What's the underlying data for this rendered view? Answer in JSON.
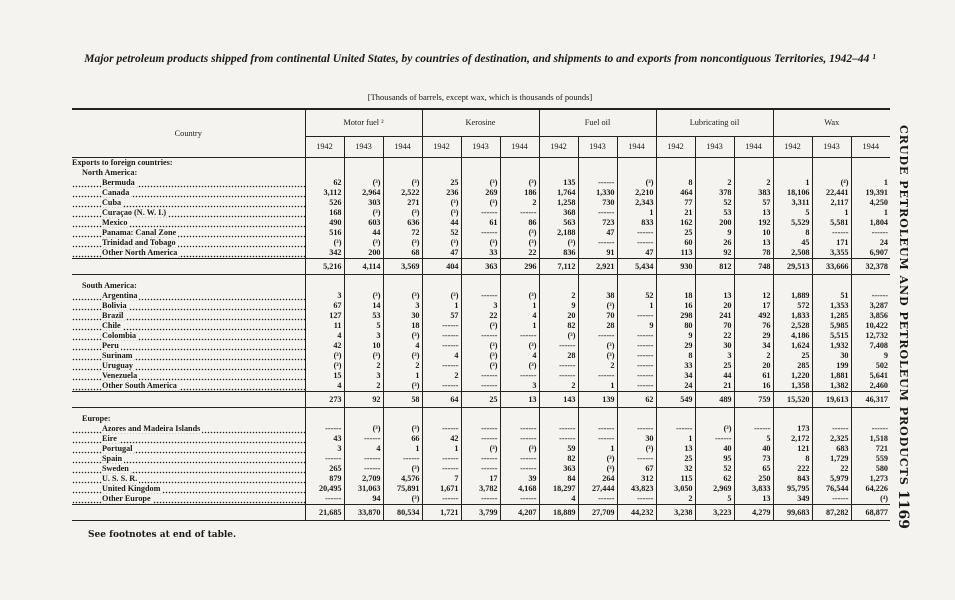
{
  "title": "Major petroleum products shipped from continental United States, by countries of destination, and shipments to and exports from noncontiguous Territories, 1942–44 ¹",
  "subtitle": "[Thousands of barrels, except wax, which is thousands of pounds]",
  "side_header": "CRUDE PETROLEUM AND PETROLEUM PRODUCTS",
  "page_number": "1169",
  "footnote_note": "See footnotes at end of table.",
  "columns": {
    "country": "Country",
    "groups": [
      "Motor fuel ²",
      "Kerosine",
      "Fuel oil",
      "Lubricating oil",
      "Wax"
    ],
    "years": [
      "1942",
      "1943",
      "1944"
    ]
  },
  "section_title": "Exports to foreign countries:",
  "regions": [
    {
      "name": "North America:",
      "rows": [
        {
          "label": "Bermuda",
          "values": [
            "62",
            "(³)",
            "(³)",
            "25",
            "(³)",
            "(³)",
            "135",
            "------",
            "(³)",
            "8",
            "2",
            "2",
            "1",
            "(⁴)",
            "1"
          ]
        },
        {
          "label": "Canada",
          "values": [
            "3,112",
            "2,964",
            "2,522",
            "236",
            "269",
            "186",
            "1,764",
            "1,330",
            "2,210",
            "464",
            "378",
            "383",
            "18,106",
            "22,441",
            "19,391"
          ]
        },
        {
          "label": "Cuba",
          "values": [
            "526",
            "303",
            "271",
            "(³)",
            "(³)",
            "2",
            "1,258",
            "730",
            "2,343",
            "77",
            "52",
            "57",
            "3,311",
            "2,117",
            "4,250"
          ]
        },
        {
          "label": "Curaçao (N. W. I.)",
          "values": [
            "168",
            "(³)",
            "(³)",
            "(³)",
            "------",
            "------",
            "368",
            "------",
            "1",
            "21",
            "53",
            "13",
            "5",
            "1",
            "1"
          ]
        },
        {
          "label": "Mexico",
          "values": [
            "490",
            "603",
            "636",
            "44",
            "61",
            "86",
            "563",
            "723",
            "833",
            "162",
            "200",
            "192",
            "5,529",
            "5,581",
            "1,804"
          ]
        },
        {
          "label": "Panama: Canal Zone",
          "values": [
            "516",
            "44",
            "72",
            "52",
            "------",
            "(³)",
            "2,188",
            "47",
            "------",
            "25",
            "9",
            "10",
            "8",
            "------",
            "------"
          ]
        },
        {
          "label": "Trinidad and Tobago",
          "values": [
            "(³)",
            "(³)",
            "(³)",
            "(³)",
            "(³)",
            "(³)",
            "(³)",
            "------",
            "------",
            "60",
            "26",
            "13",
            "45",
            "171",
            "24"
          ]
        },
        {
          "label": "Other North America",
          "values": [
            "342",
            "200",
            "68",
            "47",
            "33",
            "22",
            "836",
            "91",
            "47",
            "113",
            "92",
            "78",
            "2,508",
            "3,355",
            "6,907"
          ]
        }
      ],
      "total": [
        "5,216",
        "4,114",
        "3,569",
        "404",
        "363",
        "296",
        "7,112",
        "2,921",
        "5,434",
        "930",
        "812",
        "748",
        "29,513",
        "33,666",
        "32,378"
      ]
    },
    {
      "name": "South America:",
      "rows": [
        {
          "label": "Argentina",
          "values": [
            "3",
            "(³)",
            "(³)",
            "(³)",
            "------",
            "(³)",
            "2",
            "38",
            "52",
            "18",
            "13",
            "12",
            "1,889",
            "51",
            "------"
          ]
        },
        {
          "label": "Bolivia",
          "values": [
            "67",
            "14",
            "3",
            "1",
            "3",
            "1",
            "9",
            "(³)",
            "1",
            "16",
            "20",
            "17",
            "572",
            "1,353",
            "3,287"
          ]
        },
        {
          "label": "Brazil",
          "values": [
            "127",
            "53",
            "30",
            "57",
            "22",
            "4",
            "20",
            "70",
            "------",
            "298",
            "241",
            "492",
            "1,833",
            "1,285",
            "3,856"
          ]
        },
        {
          "label": "Chile",
          "values": [
            "11",
            "5",
            "18",
            "------",
            "(³)",
            "1",
            "82",
            "28",
            "9",
            "80",
            "70",
            "76",
            "2,528",
            "5,985",
            "10,422"
          ]
        },
        {
          "label": "Colombia",
          "values": [
            "4",
            "3",
            "(³)",
            "------",
            "------",
            "------",
            "(³)",
            "------",
            "------",
            "9",
            "22",
            "29",
            "4,186",
            "5,515",
            "12,732"
          ]
        },
        {
          "label": "Peru",
          "values": [
            "42",
            "10",
            "4",
            "------",
            "(³)",
            "(³)",
            "------",
            "(³)",
            "------",
            "29",
            "30",
            "34",
            "1,624",
            "1,932",
            "7,408"
          ]
        },
        {
          "label": "Surinam",
          "values": [
            "(³)",
            "(³)",
            "(³)",
            "4",
            "(³)",
            "4",
            "28",
            "(³)",
            "------",
            "8",
            "3",
            "2",
            "25",
            "30",
            "9"
          ]
        },
        {
          "label": "Uruguay",
          "values": [
            "(³)",
            "2",
            "2",
            "------",
            "(³)",
            "(³)",
            "------",
            "2",
            "------",
            "33",
            "25",
            "20",
            "285",
            "199",
            "502"
          ]
        },
        {
          "label": "Venezuela",
          "values": [
            "15",
            "3",
            "1",
            "2",
            "------",
            "------",
            "------",
            "------",
            "------",
            "34",
            "44",
            "61",
            "1,220",
            "1,881",
            "5,641"
          ]
        },
        {
          "label": "Other South America",
          "values": [
            "4",
            "2",
            "(³)",
            "------",
            "------",
            "3",
            "2",
            "1",
            "------",
            "24",
            "21",
            "16",
            "1,358",
            "1,382",
            "2,460"
          ]
        }
      ],
      "total": [
        "273",
        "92",
        "58",
        "64",
        "25",
        "13",
        "143",
        "139",
        "62",
        "549",
        "489",
        "759",
        "15,520",
        "19,613",
        "46,317"
      ]
    },
    {
      "name": "Europe:",
      "rows": [
        {
          "label": "Azores and Madeira Islands",
          "values": [
            "------",
            "(³)",
            "(³)",
            "------",
            "------",
            "------",
            "------",
            "------",
            "------",
            "------",
            "(³)",
            "------",
            "173",
            "------",
            "------"
          ]
        },
        {
          "label": "Eire",
          "values": [
            "43",
            "------",
            "66",
            "42",
            "------",
            "------",
            "------",
            "------",
            "30",
            "1",
            "------",
            "5",
            "2,172",
            "2,325",
            "1,518"
          ]
        },
        {
          "label": "Portugal",
          "values": [
            "3",
            "4",
            "1",
            "1",
            "(³)",
            "(³)",
            "59",
            "1",
            "(³)",
            "13",
            "40",
            "40",
            "121",
            "683",
            "721"
          ]
        },
        {
          "label": "Spain",
          "values": [
            "------",
            "------",
            "------",
            "------",
            "------",
            "------",
            "82",
            "(³)",
            "------",
            "25",
            "95",
            "73",
            "8",
            "1,729",
            "559"
          ]
        },
        {
          "label": "Sweden",
          "values": [
            "265",
            "------",
            "(³)",
            "------",
            "------",
            "------",
            "363",
            "(³)",
            "67",
            "32",
            "52",
            "65",
            "222",
            "22",
            "580"
          ]
        },
        {
          "label": "U. S. S. R.",
          "values": [
            "879",
            "2,709",
            "4,576",
            "7",
            "17",
            "39",
            "84",
            "264",
            "312",
            "115",
            "62",
            "250",
            "843",
            "5,979",
            "1,273"
          ]
        },
        {
          "label": "United Kingdom",
          "values": [
            "20,495",
            "31,063",
            "75,891",
            "1,671",
            "3,782",
            "4,168",
            "18,297",
            "27,444",
            "43,823",
            "3,050",
            "2,969",
            "3,833",
            "95,795",
            "76,544",
            "64,226"
          ]
        },
        {
          "label": "Other Europe",
          "values": [
            "------",
            "94",
            "(³)",
            "------",
            "------",
            "------",
            "4",
            "------",
            "------",
            "2",
            "5",
            "13",
            "349",
            "------",
            "(⁴)"
          ]
        }
      ],
      "total": [
        "21,685",
        "33,870",
        "80,534",
        "1,721",
        "3,799",
        "4,207",
        "18,889",
        "27,709",
        "44,232",
        "3,238",
        "3,223",
        "4,279",
        "99,683",
        "87,282",
        "68,877"
      ]
    }
  ]
}
